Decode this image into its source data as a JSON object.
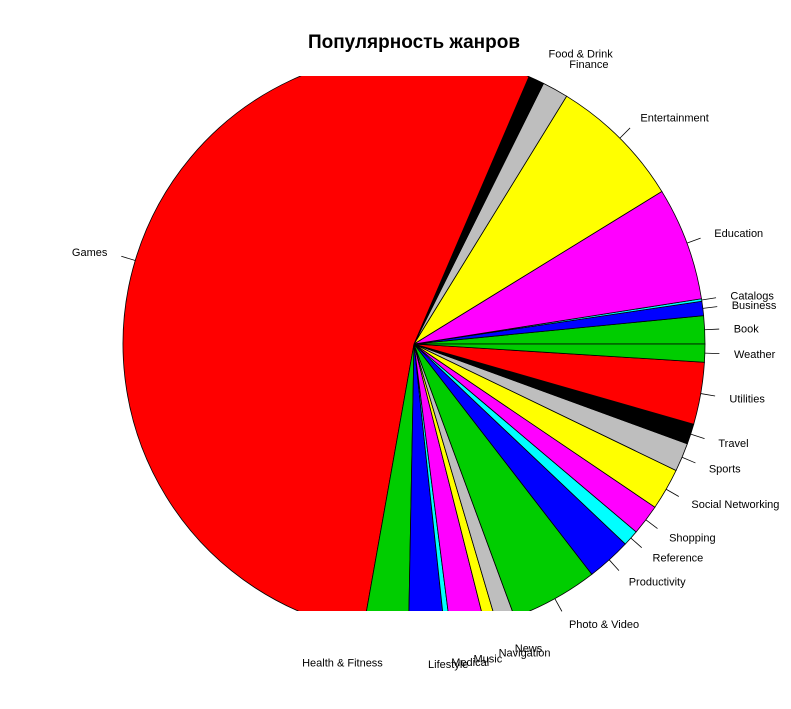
{
  "chart_data": {
    "type": "pie",
    "title": "Популярность жанров",
    "slices": [
      {
        "label": "Book",
        "value": 112,
        "color": "#00cd00"
      },
      {
        "label": "Business",
        "value": 57,
        "color": "#0000ff"
      },
      {
        "label": "Catalogs",
        "value": 10,
        "color": "#00ffff"
      },
      {
        "label": "Education",
        "value": 453,
        "color": "#ff00ff"
      },
      {
        "label": "Entertainment",
        "value": 535,
        "color": "#ffff00"
      },
      {
        "label": "Finance",
        "value": 104,
        "color": "#bebebe"
      },
      {
        "label": "Food & Drink",
        "value": 63,
        "color": "#000000"
      },
      {
        "label": "Games",
        "value": 3862,
        "color": "#ff0000"
      },
      {
        "label": "Health & Fitness",
        "value": 180,
        "color": "#00cd00"
      },
      {
        "label": "Lifestyle",
        "value": 144,
        "color": "#0000ff"
      },
      {
        "label": "Medical",
        "value": 23,
        "color": "#00ffff"
      },
      {
        "label": "Music",
        "value": 138,
        "color": "#ff00ff"
      },
      {
        "label": "Navigation",
        "value": 46,
        "color": "#ffff00"
      },
      {
        "label": "News",
        "value": 75,
        "color": "#bebebe"
      },
      {
        "label": "Photo & Video",
        "value": 349,
        "color": "#00cd00"
      },
      {
        "label": "Productivity",
        "value": 178,
        "color": "#0000ff"
      },
      {
        "label": "Reference",
        "value": 64,
        "color": "#00ffff"
      },
      {
        "label": "Shopping",
        "value": 122,
        "color": "#ff00ff"
      },
      {
        "label": "Social Networking",
        "value": 167,
        "color": "#ffff00"
      },
      {
        "label": "Sports",
        "value": 114,
        "color": "#bebebe"
      },
      {
        "label": "Travel",
        "value": 81,
        "color": "#000000"
      },
      {
        "label": "Utilities",
        "value": 248,
        "color": "#ff0000"
      },
      {
        "label": "Weather",
        "value": 72,
        "color": "#00cd00"
      }
    ]
  }
}
